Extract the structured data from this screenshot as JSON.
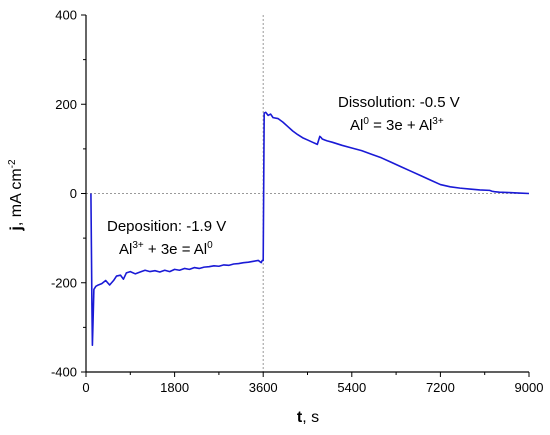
{
  "chart_data": {
    "type": "line",
    "xlabel": {
      "main": "t",
      "rest": ", s"
    },
    "ylabel": {
      "main": "j",
      "rest": ", mA cm",
      "sup": "-2"
    },
    "xlim": [
      0,
      9000
    ],
    "ylim": [
      -400,
      400
    ],
    "xticks": [
      "0",
      "1800",
      "3600",
      "5400",
      "7200",
      "9000"
    ],
    "yticks": [
      "-400",
      "-200",
      "0",
      "200",
      "400"
    ],
    "reference_lines": {
      "vertical_x": 3600,
      "horizontal_y": 0,
      "style": "dotted"
    },
    "colors": {
      "series": "#1a1ad6",
      "reference": "#9a9a9a",
      "axis": "#000000"
    },
    "annotations": {
      "deposition": {
        "title": "Deposition: -1.9 V",
        "eq_a": "Al",
        "eq_a_sup": "3+",
        "eq_b": " + 3e = Al",
        "eq_b_sup": "0"
      },
      "dissolution": {
        "title": "Dissolution: -0.5 V",
        "eq_a": "Al",
        "eq_a_sup": "0",
        "eq_b": " =  3e + Al",
        "eq_b_sup": "3+"
      }
    },
    "series": [
      {
        "x": [
          100,
          110,
          120,
          130,
          140,
          160,
          200,
          250,
          320,
          400,
          480,
          560,
          620,
          700,
          760,
          820,
          900,
          1000,
          1100,
          1200,
          1300,
          1400,
          1500,
          1600,
          1700,
          1800,
          1900,
          2000,
          2100,
          2200,
          2300,
          2400,
          2500,
          2600,
          2700,
          2800,
          2900,
          3000,
          3100,
          3200,
          3300,
          3400,
          3500,
          3560,
          3580,
          3600,
          3620,
          3650,
          3700,
          3750,
          3800,
          3900,
          4000,
          4100,
          4200,
          4300,
          4400,
          4500,
          4600,
          4700,
          4750,
          4780,
          4800,
          4850,
          4900,
          5000,
          5200,
          5400,
          5600,
          5800,
          6000,
          6200,
          6400,
          6600,
          6800,
          7000,
          7200,
          7400,
          7600,
          7800,
          8000,
          8200,
          8250,
          8300,
          8400,
          8600,
          8800,
          9000
        ],
        "y": [
          0,
          -120,
          -250,
          -340,
          -300,
          -215,
          -208,
          -205,
          -202,
          -195,
          -205,
          -195,
          -185,
          -183,
          -192,
          -178,
          -175,
          -180,
          -176,
          -172,
          -175,
          -173,
          -176,
          -172,
          -175,
          -170,
          -172,
          -168,
          -170,
          -166,
          -168,
          -165,
          -164,
          -162,
          -163,
          -160,
          -161,
          -158,
          -157,
          -155,
          -154,
          -152,
          -150,
          -155,
          -150,
          -150,
          180,
          182,
          175,
          178,
          170,
          168,
          160,
          150,
          140,
          132,
          125,
          120,
          115,
          110,
          128,
          125,
          122,
          120,
          118,
          115,
          108,
          102,
          96,
          88,
          80,
          70,
          60,
          50,
          40,
          30,
          20,
          15,
          12,
          10,
          8,
          7,
          5,
          4,
          3,
          2,
          1,
          0
        ]
      }
    ]
  }
}
